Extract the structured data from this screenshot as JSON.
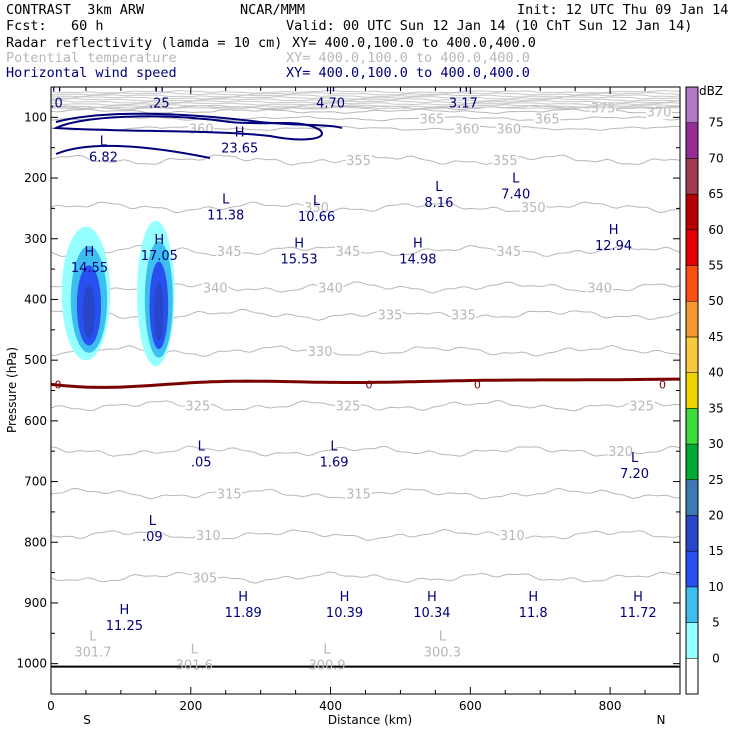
{
  "header": {
    "model": "CONTRAST  3km ARW",
    "org": "NCAR/MMM",
    "init": "Init: 12 UTC Thu 09 Jan 14",
    "fcst": "Fcst:   60 h",
    "valid": "Valid: 00 UTC Sun 12 Jan 14 (10 ChT Sun 12 Jan 14)",
    "fields": [
      {
        "name": "Radar reflectivity (lamda = 10 cm)",
        "xy": "XY= 400.0,100.0 to 400.0,400.0",
        "color": "#000000"
      },
      {
        "name": "Potential temperature",
        "xy": "XY= 400.0,100.0 to 400.0,400.0",
        "color": "#b8b8b8"
      },
      {
        "name": "Horizontal wind speed",
        "xy": "XY= 400.0,100.0 to 400.0,400.0",
        "color": "#00007a"
      }
    ]
  },
  "chart_data": {
    "type": "contour",
    "xlabel": "Distance (km)",
    "ylabel": "Pressure (hPa)",
    "xlim": [
      0,
      900
    ],
    "ylim": [
      1050,
      50
    ],
    "x_ticks": [
      0,
      200,
      400,
      600,
      800
    ],
    "y_ticks": [
      100,
      200,
      300,
      400,
      500,
      600,
      700,
      800,
      900,
      1000
    ],
    "endpoints": {
      "left": "S",
      "right": "N"
    },
    "colorbar": {
      "unit": "dBZ",
      "levels": [
        0,
        5,
        10,
        15,
        20,
        25,
        30,
        35,
        40,
        45,
        50,
        55,
        60,
        65,
        70,
        75
      ],
      "colors": [
        "#ffffff",
        "#96ffff",
        "#3cbef0",
        "#2850f0",
        "#2846c8",
        "#3c7ab4",
        "#00aa32",
        "#3cdc3c",
        "#f0d200",
        "#fac83c",
        "#fa9632",
        "#fa5014",
        "#e60000",
        "#b40000",
        "#a03c50",
        "#962d96",
        "#b478c8"
      ]
    },
    "theta_contours": [
      {
        "value": 305,
        "p": 858,
        "labels": [
          {
            "text": "305",
            "x": 220
          }
        ]
      },
      {
        "value": 310,
        "p": 788,
        "labels": [
          {
            "text": "310",
            "x": 225
          },
          {
            "text": "310",
            "x": 660
          }
        ]
      },
      {
        "value": 315,
        "p": 720,
        "labels": [
          {
            "text": "315",
            "x": 255
          },
          {
            "text": "315",
            "x": 440
          }
        ]
      },
      {
        "value": 320,
        "p": 650,
        "labels": [
          {
            "text": "320",
            "x": 815
          }
        ]
      },
      {
        "value": 325,
        "p": 575,
        "labels": [
          {
            "text": "325",
            "x": 210
          },
          {
            "text": "325",
            "x": 425
          },
          {
            "text": "325",
            "x": 845
          }
        ]
      },
      {
        "value": 330,
        "p": 485,
        "labels": [
          {
            "text": "330",
            "x": 385
          }
        ]
      },
      {
        "value": 335,
        "p": 425,
        "labels": [
          {
            "text": "335",
            "x": 485
          },
          {
            "text": "335",
            "x": 590
          }
        ]
      },
      {
        "value": 340,
        "p": 380,
        "labels": [
          {
            "text": "340",
            "x": 235
          },
          {
            "text": "340",
            "x": 400
          },
          {
            "text": "340",
            "x": 785
          }
        ]
      },
      {
        "value": 345,
        "p": 320,
        "labels": [
          {
            "text": "345",
            "x": 255
          },
          {
            "text": "345",
            "x": 425
          },
          {
            "text": "345",
            "x": 655
          }
        ]
      },
      {
        "value": 350,
        "p": 248,
        "labels": [
          {
            "text": "350",
            "x": 380
          },
          {
            "text": "350",
            "x": 690
          }
        ]
      },
      {
        "value": 355,
        "p": 170,
        "labels": [
          {
            "text": "355",
            "x": 440
          },
          {
            "text": "355",
            "x": 650
          }
        ]
      },
      {
        "value": 360,
        "p": 118,
        "labels": [
          {
            "text": "360",
            "x": 215
          },
          {
            "text": "360",
            "x": 595
          },
          {
            "text": "360",
            "x": 655
          }
        ]
      },
      {
        "value": 365,
        "p": 102,
        "labels": [
          {
            "text": "365",
            "x": 545
          },
          {
            "text": "365",
            "x": 710
          }
        ]
      },
      {
        "value": 370,
        "p": 90,
        "labels": [
          {
            "text": "370",
            "x": 870
          }
        ]
      },
      {
        "value": 375,
        "p": 84,
        "labels": [
          {
            "text": "375",
            "x": 790
          }
        ]
      }
    ],
    "freezing_level": {
      "label": "0",
      "p": 540,
      "label_x": [
        10,
        455,
        610,
        875
      ]
    },
    "reflectivity_cells": [
      {
        "x": 50,
        "p_top": 280,
        "p_bottom": 500,
        "max_dbz": 20
      },
      {
        "x": 150,
        "p_top": 270,
        "p_bottom": 510,
        "max_dbz": 20
      }
    ],
    "surface_pressure_hpa": 1005,
    "wind_extrema": [
      {
        "type": "H",
        "value": "14.55",
        "x": 55,
        "p": 345
      },
      {
        "type": "H",
        "value": "17.05",
        "x": 155,
        "p": 325
      },
      {
        "type": "L",
        "value": "6.82",
        "x": 75,
        "p": 163
      },
      {
        "type": "H",
        "value": "23.65",
        "x": 270,
        "p": 148
      },
      {
        "type": "L",
        "value": "11.38",
        "x": 250,
        "p": 258
      },
      {
        "type": "L",
        "value": "10.66",
        "x": 380,
        "p": 261
      },
      {
        "type": "L",
        "value": "8.16",
        "x": 555,
        "p": 238
      },
      {
        "type": "L",
        "value": "7.40",
        "x": 665,
        "p": 224
      },
      {
        "type": "H",
        "value": "15.53",
        "x": 355,
        "p": 331
      },
      {
        "type": "H",
        "value": "14.98",
        "x": 525,
        "p": 331
      },
      {
        "type": "H",
        "value": "12.94",
        "x": 805,
        "p": 309
      },
      {
        "type": "H",
        "value": ".25",
        "x": 155,
        "p": 74
      },
      {
        "type": "H",
        "value": "4.70",
        "x": 400,
        "p": 74
      },
      {
        "type": "H",
        "value": "3.17",
        "x": 590,
        "p": 74
      },
      {
        "type": "H",
        "value": ".0",
        "x": 8,
        "p": 74
      },
      {
        "type": "L",
        "value": ".05",
        "x": 215,
        "p": 665
      },
      {
        "type": "L",
        "value": "1.69",
        "x": 405,
        "p": 665
      },
      {
        "type": "L",
        "value": "7.20",
        "x": 835,
        "p": 684
      },
      {
        "type": "L",
        "value": ".09",
        "x": 145,
        "p": 788
      },
      {
        "type": "H",
        "value": "11.25",
        "x": 105,
        "p": 935
      },
      {
        "type": "H",
        "value": "11.89",
        "x": 275,
        "p": 913
      },
      {
        "type": "H",
        "value": "10.39",
        "x": 420,
        "p": 913
      },
      {
        "type": "H",
        "value": "10.34",
        "x": 545,
        "p": 913
      },
      {
        "type": "H",
        "value": "11.8",
        "x": 690,
        "p": 913
      },
      {
        "type": "H",
        "value": "11.72",
        "x": 840,
        "p": 913
      }
    ],
    "theta_extrema": [
      {
        "type": "L",
        "value": "301.7",
        "x": 60,
        "p": 978
      },
      {
        "type": "L",
        "value": "301.6",
        "x": 205,
        "p": 1000
      },
      {
        "type": "L",
        "value": "300.9",
        "x": 395,
        "p": 1000
      },
      {
        "type": "L",
        "value": "300.3",
        "x": 560,
        "p": 978
      }
    ]
  }
}
